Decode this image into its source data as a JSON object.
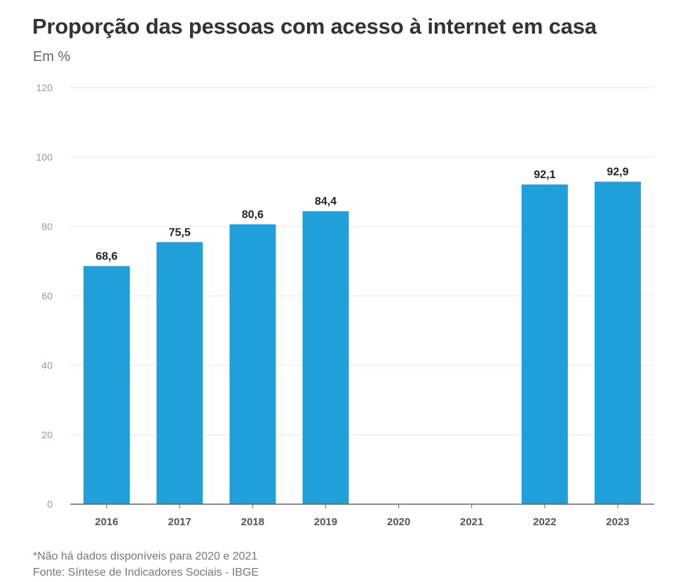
{
  "title": "Proporção das pessoas com acesso à internet em casa",
  "subtitle": "Em %",
  "footnote": "*Não há dados disponíveis para 2020 e 2021",
  "source": "Fonte: Síntese de Indicadores Sociais - IBGE",
  "colors": {
    "bar": "#1fa0db",
    "grid": "#e6e6e6",
    "axis": "#666666",
    "tick_label": "#999999",
    "category_label": "#555555",
    "value_label": "#222222"
  },
  "chart_data": {
    "type": "bar",
    "categories": [
      "2016",
      "2017",
      "2018",
      "2019",
      "2020",
      "2021",
      "2022",
      "2023"
    ],
    "values": [
      68.6,
      75.5,
      80.6,
      84.4,
      null,
      null,
      92.1,
      92.9
    ],
    "value_labels": [
      "68,6",
      "75,5",
      "80,6",
      "84,4",
      "",
      "",
      "92,1",
      "92,9"
    ],
    "y_ticks": [
      0,
      20,
      40,
      60,
      80,
      100,
      120
    ],
    "ylim": [
      0,
      120
    ],
    "grid": true,
    "legend": "none"
  }
}
